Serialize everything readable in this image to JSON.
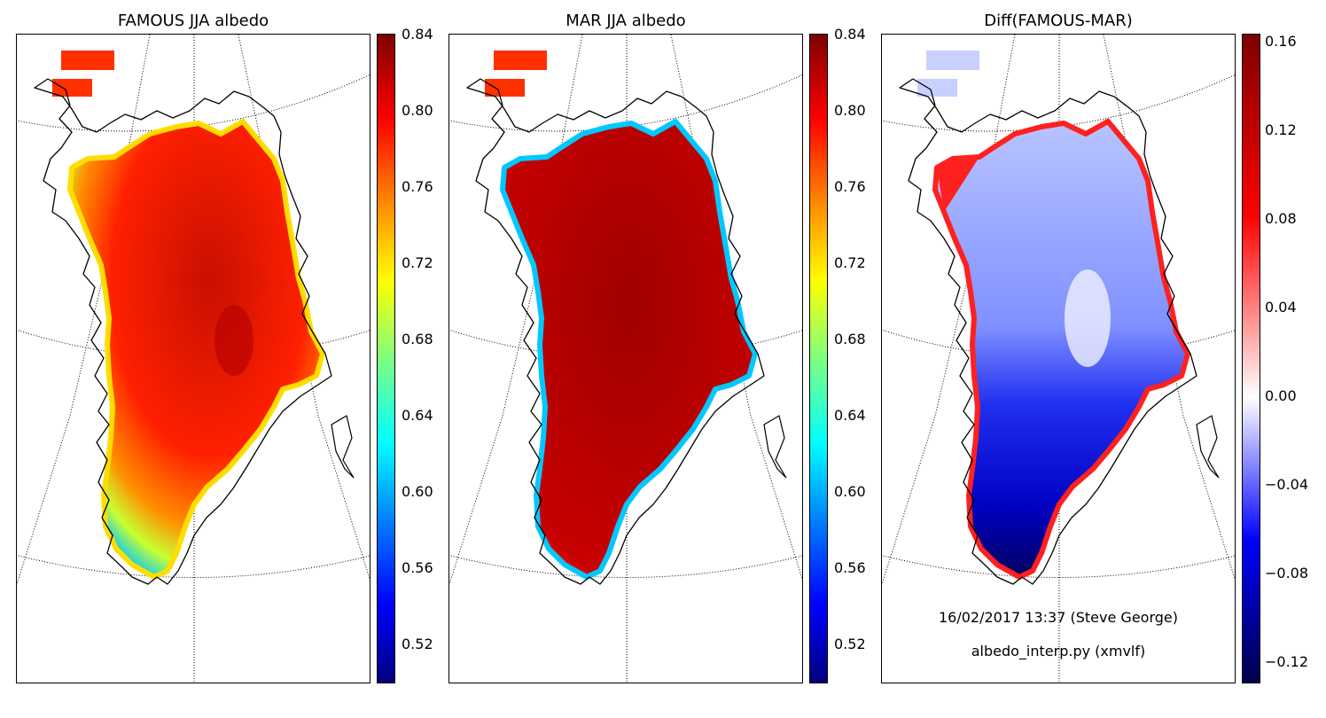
{
  "panels": [
    {
      "title": "FAMOUS JJA albedo",
      "colormap": "jet",
      "colorbar_ticks": [
        "0.84",
        "0.80",
        "0.76",
        "0.72",
        "0.68",
        "0.64",
        "0.60",
        "0.56",
        "0.52"
      ],
      "colorbar_range": [
        0.5,
        0.84
      ]
    },
    {
      "title": "MAR JJA albedo",
      "colormap": "jet",
      "colorbar_ticks": [
        "0.84",
        "0.80",
        "0.76",
        "0.72",
        "0.68",
        "0.64",
        "0.60",
        "0.56",
        "0.52"
      ],
      "colorbar_range": [
        0.5,
        0.84
      ]
    },
    {
      "title": "Diff(FAMOUS-MAR)",
      "colormap": "seismic",
      "colorbar_ticks": [
        "0.16",
        "0.12",
        "0.08",
        "0.04",
        "0.00",
        "−0.04",
        "−0.08",
        "−0.12"
      ],
      "colorbar_range": [
        -0.13,
        0.165
      ]
    }
  ],
  "annotations": {
    "timestamp": "16/02/2017 13:37 (Steve George)",
    "script": "albedo_interp.py (xmvlf)"
  }
}
